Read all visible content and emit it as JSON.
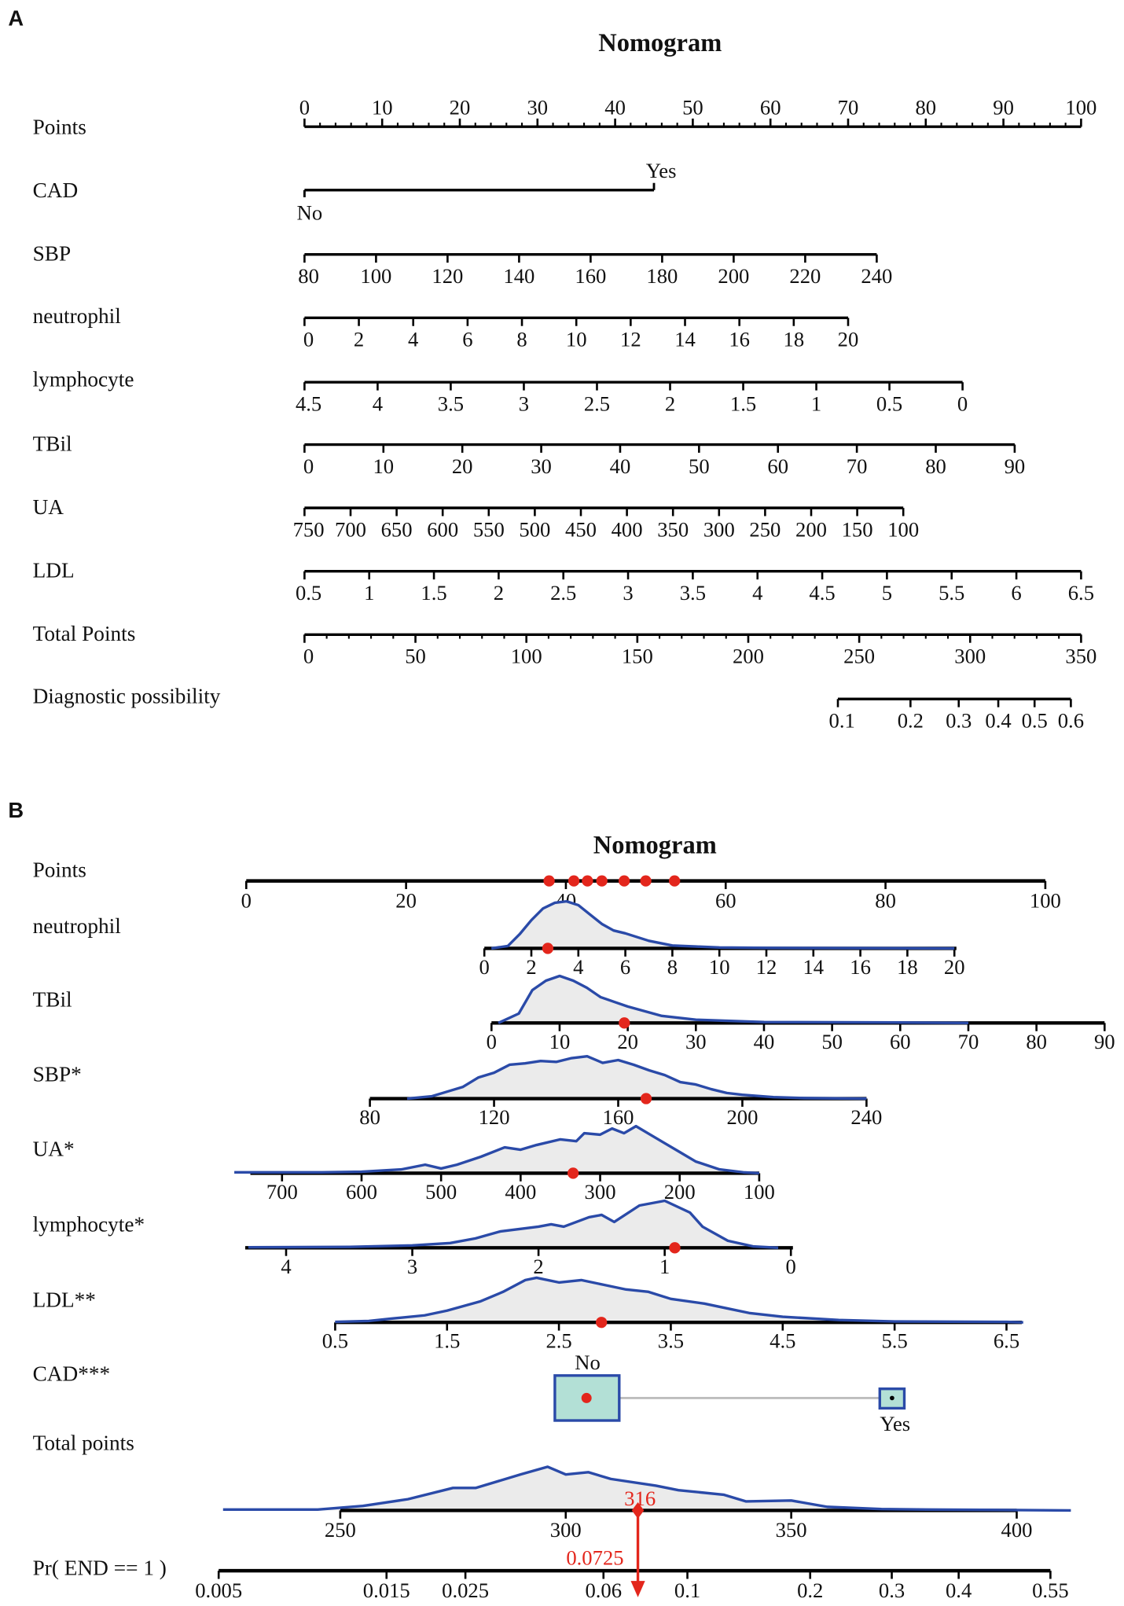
{
  "chart_data": [
    {
      "type": "nomogram",
      "panel_letter": "A",
      "title": "Nomogram",
      "rows": [
        {
          "key": "points",
          "label": "Points",
          "ticks": [
            "0",
            "10",
            "20",
            "30",
            "40",
            "50",
            "60",
            "70",
            "80",
            "90",
            "100"
          ],
          "minor_step": 2
        },
        {
          "key": "cad",
          "label": "CAD",
          "levels": [
            "No",
            "Yes"
          ],
          "level_points": [
            0,
            45
          ]
        },
        {
          "key": "sbp",
          "label": "SBP",
          "ticks": [
            "80",
            "100",
            "120",
            "140",
            "160",
            "180",
            "200",
            "220",
            "240"
          ]
        },
        {
          "key": "neutrophil",
          "label": "neutrophil",
          "ticks": [
            "0",
            "2",
            "4",
            "6",
            "8",
            "10",
            "12",
            "14",
            "16",
            "18",
            "20"
          ]
        },
        {
          "key": "lymphocyte",
          "label": "lymphocyte",
          "ticks": [
            "4.5",
            "4",
            "3.5",
            "3",
            "2.5",
            "2",
            "1.5",
            "1",
            "0.5",
            "0"
          ]
        },
        {
          "key": "tbil",
          "label": "TBil",
          "ticks": [
            "0",
            "10",
            "20",
            "30",
            "40",
            "50",
            "60",
            "70",
            "80",
            "90"
          ]
        },
        {
          "key": "ua",
          "label": "UA",
          "ticks": [
            "750",
            "700",
            "650",
            "600",
            "550",
            "500",
            "450",
            "400",
            "350",
            "300",
            "250",
            "200",
            "150",
            "100"
          ]
        },
        {
          "key": "ldl",
          "label": "LDL",
          "ticks": [
            "0.5",
            "1",
            "1.5",
            "2",
            "2.5",
            "3",
            "3.5",
            "4",
            "4.5",
            "5",
            "5.5",
            "6",
            "6.5"
          ]
        },
        {
          "key": "total",
          "label": "Total Points",
          "ticks": [
            "0",
            "50",
            "100",
            "150",
            "200",
            "250",
            "300",
            "350"
          ],
          "minor_step": 10
        },
        {
          "key": "prob",
          "label": "Diagnostic possibility",
          "ticks": [
            "0.1",
            "0.2",
            "0.3",
            "0.4",
            "0.5",
            "0.6"
          ]
        }
      ]
    },
    {
      "type": "nomogram",
      "panel_letter": "B",
      "title": "Nomogram",
      "colors": {
        "marker": "#e3261c",
        "density_line": "#2a4aa8",
        "density_fill": "#ebebeb",
        "box_fill": "#b3e0d6"
      },
      "points_row": {
        "label": "Points",
        "ticks": [
          "0",
          "20",
          "40",
          "60",
          "80",
          "100"
        ],
        "markers": [
          37.9,
          41.0,
          42.7,
          44.5,
          47.3,
          50.0,
          53.6
        ]
      },
      "rows": [
        {
          "key": "neutrophil",
          "label": "neutrophil",
          "ticks": [
            "0",
            "2",
            "4",
            "6",
            "8",
            "10",
            "12",
            "14",
            "16",
            "18",
            "20"
          ],
          "value": 2.7,
          "density": [
            [
              0.3,
              0
            ],
            [
              1,
              0.05
            ],
            [
              1.5,
              0.3
            ],
            [
              2,
              0.6
            ],
            [
              2.5,
              0.85
            ],
            [
              3,
              0.97
            ],
            [
              3.5,
              1
            ],
            [
              4,
              0.92
            ],
            [
              4.5,
              0.72
            ],
            [
              5,
              0.52
            ],
            [
              5.5,
              0.38
            ],
            [
              6,
              0.32
            ],
            [
              7,
              0.16
            ],
            [
              8,
              0.06
            ],
            [
              9,
              0.04
            ],
            [
              10,
              0.02
            ],
            [
              12,
              0.01
            ],
            [
              20,
              0
            ]
          ]
        },
        {
          "key": "tbil",
          "label": "TBil",
          "ticks": [
            "0",
            "10",
            "20",
            "30",
            "40",
            "50",
            "60",
            "70",
            "80",
            "90"
          ],
          "value": 19.5,
          "density": [
            [
              1,
              0
            ],
            [
              4,
              0.2
            ],
            [
              6,
              0.7
            ],
            [
              8,
              0.9
            ],
            [
              10,
              1
            ],
            [
              12,
              0.9
            ],
            [
              14,
              0.75
            ],
            [
              16,
              0.55
            ],
            [
              18,
              0.45
            ],
            [
              20,
              0.35
            ],
            [
              25,
              0.15
            ],
            [
              30,
              0.07
            ],
            [
              40,
              0.02
            ],
            [
              60,
              0.01
            ],
            [
              70,
              0
            ]
          ]
        },
        {
          "key": "sbp",
          "label": "SBP*",
          "ticks": [
            "80",
            "120",
            "160",
            "200",
            "240"
          ],
          "value": 169,
          "density": [
            [
              92,
              0
            ],
            [
              100,
              0.05
            ],
            [
              105,
              0.15
            ],
            [
              110,
              0.25
            ],
            [
              115,
              0.45
            ],
            [
              120,
              0.55
            ],
            [
              125,
              0.72
            ],
            [
              130,
              0.75
            ],
            [
              135,
              0.8
            ],
            [
              140,
              0.78
            ],
            [
              145,
              0.86
            ],
            [
              150,
              0.9
            ],
            [
              155,
              0.76
            ],
            [
              160,
              0.82
            ],
            [
              165,
              0.72
            ],
            [
              170,
              0.6
            ],
            [
              175,
              0.5
            ],
            [
              180,
              0.35
            ],
            [
              185,
              0.3
            ],
            [
              190,
              0.2
            ],
            [
              195,
              0.12
            ],
            [
              200,
              0.08
            ],
            [
              210,
              0.03
            ],
            [
              220,
              0.01
            ],
            [
              240,
              0
            ]
          ]
        },
        {
          "key": "ua",
          "label": "UA*",
          "ticks": [
            "700",
            "600",
            "500",
            "400",
            "300",
            "200",
            "100"
          ],
          "value": 334,
          "density": [
            [
              760,
              0.02
            ],
            [
              650,
              0.02
            ],
            [
              600,
              0.03
            ],
            [
              550,
              0.08
            ],
            [
              520,
              0.18
            ],
            [
              500,
              0.1
            ],
            [
              480,
              0.18
            ],
            [
              450,
              0.35
            ],
            [
              420,
              0.55
            ],
            [
              400,
              0.5
            ],
            [
              380,
              0.6
            ],
            [
              350,
              0.72
            ],
            [
              330,
              0.68
            ],
            [
              320,
              0.85
            ],
            [
              300,
              0.82
            ],
            [
              285,
              0.95
            ],
            [
              270,
              0.85
            ],
            [
              255,
              1
            ],
            [
              240,
              0.85
            ],
            [
              220,
              0.65
            ],
            [
              200,
              0.45
            ],
            [
              180,
              0.25
            ],
            [
              150,
              0.08
            ],
            [
              120,
              0.02
            ],
            [
              100,
              0
            ]
          ]
        },
        {
          "key": "lymphocyte",
          "label": "lymphocyte*",
          "ticks": [
            "4",
            "3",
            "2",
            "1",
            "0"
          ],
          "value": 0.92,
          "density": [
            [
              4.3,
              0.01
            ],
            [
              3.5,
              0.02
            ],
            [
              3,
              0.05
            ],
            [
              2.7,
              0.1
            ],
            [
              2.5,
              0.2
            ],
            [
              2.3,
              0.35
            ],
            [
              2,
              0.45
            ],
            [
              1.9,
              0.5
            ],
            [
              1.8,
              0.45
            ],
            [
              1.6,
              0.65
            ],
            [
              1.5,
              0.7
            ],
            [
              1.4,
              0.55
            ],
            [
              1.2,
              0.9
            ],
            [
              1.0,
              1.0
            ],
            [
              0.8,
              0.75
            ],
            [
              0.7,
              0.45
            ],
            [
              0.5,
              0.15
            ],
            [
              0.3,
              0.03
            ],
            [
              0.1,
              0
            ]
          ]
        },
        {
          "key": "ldl",
          "label": "LDL**",
          "ticks": [
            "0.5",
            "1.5",
            "2.5",
            "3.5",
            "4.5",
            "5.5",
            "6.5"
          ],
          "value": 2.88,
          "density": [
            [
              0.5,
              0.01
            ],
            [
              0.8,
              0.03
            ],
            [
              1,
              0.08
            ],
            [
              1.3,
              0.15
            ],
            [
              1.5,
              0.25
            ],
            [
              1.8,
              0.45
            ],
            [
              2,
              0.65
            ],
            [
              2.2,
              0.9
            ],
            [
              2.3,
              0.95
            ],
            [
              2.5,
              0.85
            ],
            [
              2.7,
              0.9
            ],
            [
              2.9,
              0.8
            ],
            [
              3.1,
              0.7
            ],
            [
              3.3,
              0.65
            ],
            [
              3.5,
              0.5
            ],
            [
              3.8,
              0.4
            ],
            [
              4,
              0.3
            ],
            [
              4.2,
              0.2
            ],
            [
              4.5,
              0.12
            ],
            [
              5,
              0.05
            ],
            [
              5.5,
              0.02
            ],
            [
              6.5,
              0.01
            ],
            [
              6.65,
              0
            ]
          ]
        }
      ],
      "cad": {
        "label": "CAD***",
        "levels": [
          "No",
          "Yes"
        ],
        "selected": "No"
      },
      "total": {
        "label": "Total points",
        "ticks": [
          "250",
          "300",
          "350",
          "400"
        ],
        "value": 316,
        "value_label": "316",
        "density": [
          [
            224,
            0.02
          ],
          [
            245,
            0.02
          ],
          [
            255,
            0.1
          ],
          [
            265,
            0.25
          ],
          [
            275,
            0.5
          ],
          [
            280,
            0.5
          ],
          [
            290,
            0.8
          ],
          [
            296,
            0.97
          ],
          [
            300,
            0.8
          ],
          [
            305,
            0.85
          ],
          [
            310,
            0.7
          ],
          [
            320,
            0.55
          ],
          [
            325,
            0.45
          ],
          [
            335,
            0.35
          ],
          [
            340,
            0.2
          ],
          [
            350,
            0.22
          ],
          [
            358,
            0.08
          ],
          [
            370,
            0.03
          ],
          [
            380,
            0.02
          ],
          [
            412,
            0
          ]
        ]
      },
      "probability": {
        "label": "Pr( END == 1 )",
        "ticks": [
          "0.005",
          "0.015",
          "0.025",
          "0.06",
          "0.1",
          "0.2",
          "0.3",
          "0.4",
          "0.55"
        ],
        "value": 0.0725,
        "value_label": "0.0725"
      }
    }
  ]
}
